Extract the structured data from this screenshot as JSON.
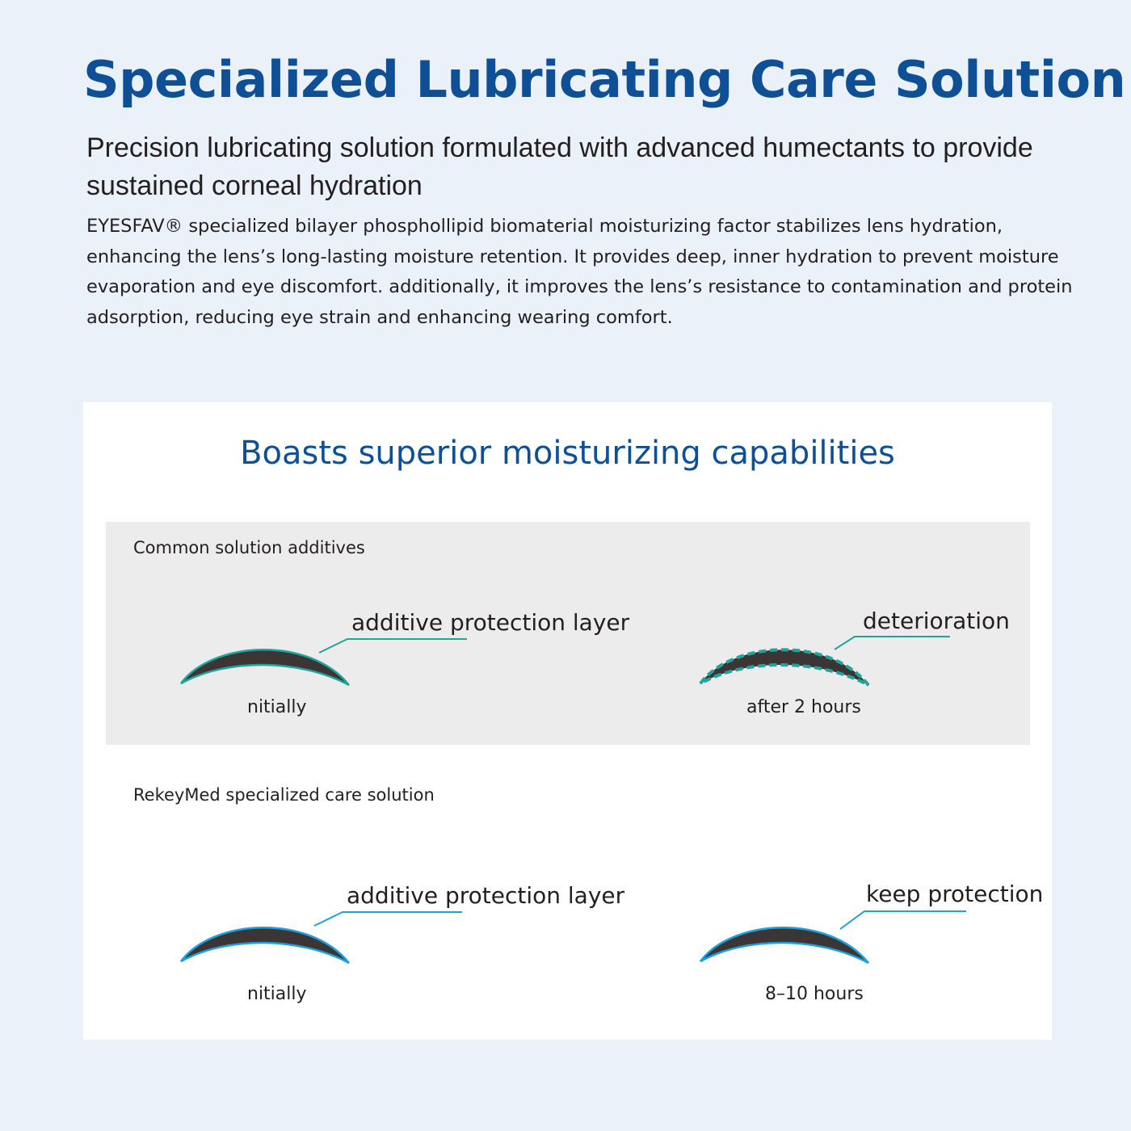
{
  "header": {
    "title": "Specialized Lubricating Care Solution",
    "subtitle": "Precision lubricating solution formulated with advanced humectants to provide sustained corneal hydration",
    "body": "EYESFAV® specialized bilayer phosphollipid biomaterial moisturizing factor stabilizes lens hydration, enhancing the lens’s long-lasting moisture retention. It provides deep, inner hydration to prevent moisture evaporation and eye discomfort. additionally, it improves the lens’s resistance to contamination and protein adsorption, reducing eye strain and enhancing wearing comfort."
  },
  "comparison": {
    "title": "Boasts superior moisturizing capabilities",
    "common": {
      "label": "Common solution additives",
      "color": "#1fa59a",
      "initial": {
        "callout": "additive protection layer",
        "caption": "nitially"
      },
      "after": {
        "callout": "deterioration",
        "caption": "after 2 hours",
        "style": "dashed"
      }
    },
    "rekeymed": {
      "label": "RekeyMed specialized care solution",
      "color": "#1ea0dc",
      "initial": {
        "callout": "additive protection layer",
        "caption": "nitially"
      },
      "after": {
        "callout": "keep protection",
        "caption": "8–10 hours",
        "style": "solid"
      }
    },
    "lens_color": "#3b3536"
  }
}
